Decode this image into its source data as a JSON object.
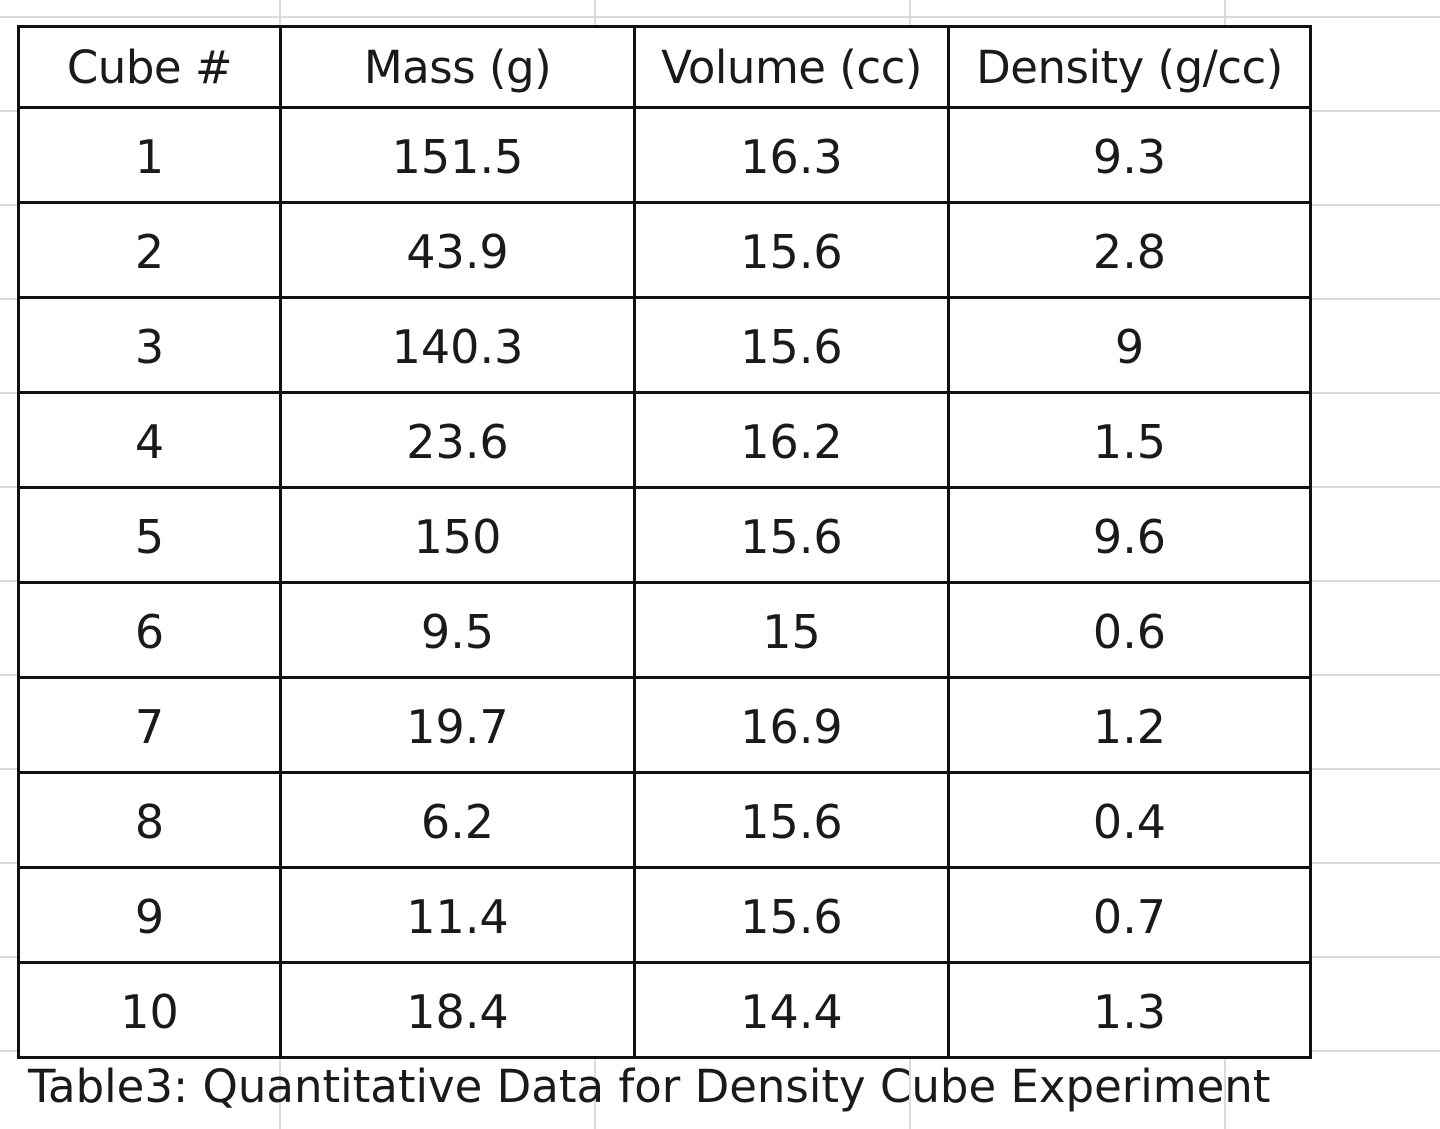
{
  "table": {
    "headers": [
      "Cube #",
      "Mass (g)",
      "Volume (cc)",
      "Density (g/cc)"
    ],
    "rows": [
      [
        "1",
        "151.5",
        "16.3",
        "9.3"
      ],
      [
        "2",
        "43.9",
        "15.6",
        "2.8"
      ],
      [
        "3",
        "140.3",
        "15.6",
        "9"
      ],
      [
        "4",
        "23.6",
        "16.2",
        "1.5"
      ],
      [
        "5",
        "150",
        "15.6",
        "9.6"
      ],
      [
        "6",
        "9.5",
        "15",
        "0.6"
      ],
      [
        "7",
        "19.7",
        "16.9",
        "1.2"
      ],
      [
        "8",
        "6.2",
        "15.6",
        "0.4"
      ],
      [
        "9",
        "11.4",
        "15.6",
        "0.7"
      ],
      [
        "10",
        "18.4",
        "14.4",
        "1.3"
      ]
    ]
  },
  "caption": "Table3: Quantitative Data for Density Cube Experiment",
  "colors": {
    "gridline": "#d6dbe2",
    "border": "#111111",
    "text": "#1a1a1a"
  }
}
